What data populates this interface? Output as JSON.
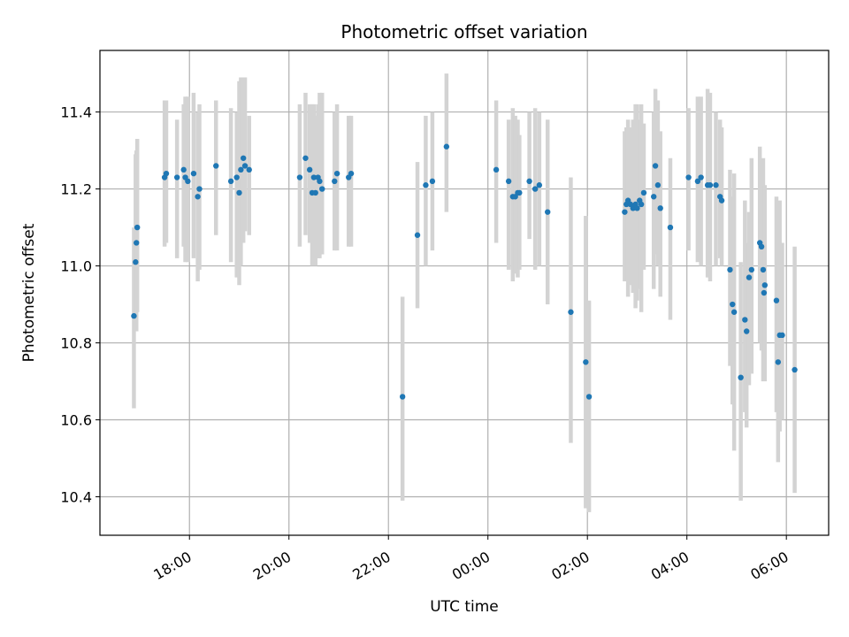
{
  "chart_data": {
    "type": "scatter",
    "title": "Photometric offset variation",
    "xlabel": "UTC time",
    "ylabel": "Photometric offset",
    "x_axis": {
      "kind": "time",
      "start": "17:00",
      "day_break_after": "24:00",
      "range_hours": [
        16.2,
        30.85
      ],
      "ticks": [
        {
          "label": "18:00",
          "hours": 18
        },
        {
          "label": "20:00",
          "hours": 20
        },
        {
          "label": "22:00",
          "hours": 22
        },
        {
          "label": "00:00",
          "hours": 24
        },
        {
          "label": "02:00",
          "hours": 26
        },
        {
          "label": "04:00",
          "hours": 28
        },
        {
          "label": "06:00",
          "hours": 30
        }
      ]
    },
    "ylim": [
      10.3,
      11.56
    ],
    "yticks": [
      "10.4",
      "10.6",
      "10.8",
      "11.0",
      "11.2",
      "11.4"
    ],
    "grid": true,
    "colors": {
      "point": "#1f77b4",
      "errorbar": "#d3d3d3",
      "grid": "#b0b0b0"
    },
    "series": [
      {
        "points": [
          [
            "16:53",
            10.87,
            10.63,
            11.1
          ],
          [
            "16:55",
            11.01,
            10.86,
            11.29
          ],
          [
            "16:56",
            11.06,
            10.83,
            11.3
          ],
          [
            "16:57",
            11.1,
            10.88,
            11.33
          ],
          [
            "17:30",
            11.23,
            11.05,
            11.43
          ],
          [
            "17:32",
            11.24,
            11.06,
            11.43
          ],
          [
            "17:45",
            11.23,
            11.02,
            11.38
          ],
          [
            "17:53",
            11.25,
            11.05,
            11.42
          ],
          [
            "17:55",
            11.23,
            11.01,
            11.44
          ],
          [
            "17:58",
            11.22,
            11.01,
            11.44
          ],
          [
            "18:05",
            11.24,
            11.02,
            11.45
          ],
          [
            "18:10",
            11.18,
            10.96,
            11.4
          ],
          [
            "18:12",
            11.2,
            10.99,
            11.42
          ],
          [
            "18:32",
            11.26,
            11.08,
            11.43
          ],
          [
            "18:50",
            11.22,
            11.01,
            11.41
          ],
          [
            "18:57",
            11.23,
            10.97,
            11.4
          ],
          [
            "19:00",
            11.19,
            10.95,
            11.48
          ],
          [
            "19:02",
            11.25,
            11.0,
            11.49
          ],
          [
            "19:05",
            11.28,
            11.06,
            11.49
          ],
          [
            "19:07",
            11.26,
            11.09,
            11.49
          ],
          [
            "19:12",
            11.25,
            11.08,
            11.39
          ],
          [
            "20:13",
            11.23,
            11.05,
            11.42
          ],
          [
            "20:20",
            11.28,
            11.08,
            11.45
          ],
          [
            "20:25",
            11.25,
            11.06,
            11.42
          ],
          [
            "20:28",
            11.19,
            11.0,
            11.42
          ],
          [
            "20:30",
            11.23,
            11.02,
            11.42
          ],
          [
            "20:32",
            11.19,
            11.0,
            11.39
          ],
          [
            "20:35",
            11.23,
            11.02,
            11.42
          ],
          [
            "20:37",
            11.22,
            11.02,
            11.45
          ],
          [
            "20:40",
            11.2,
            11.03,
            11.45
          ],
          [
            "20:55",
            11.22,
            11.04,
            11.4
          ],
          [
            "20:58",
            11.24,
            11.04,
            11.42
          ],
          [
            "21:12",
            11.23,
            11.05,
            11.39
          ],
          [
            "21:15",
            11.24,
            11.05,
            11.39
          ],
          [
            "22:17",
            10.66,
            10.39,
            10.92
          ],
          [
            "22:35",
            11.08,
            10.89,
            11.27
          ],
          [
            "22:45",
            11.21,
            11.0,
            11.39
          ],
          [
            "22:53",
            11.22,
            11.04,
            11.4
          ],
          [
            "23:10",
            11.31,
            11.14,
            11.5
          ],
          [
            "00:10",
            11.25,
            11.06,
            11.43
          ],
          [
            "00:25",
            11.22,
            10.99,
            11.38
          ],
          [
            "00:30",
            11.18,
            10.96,
            11.41
          ],
          [
            "00:33",
            11.18,
            10.98,
            11.39
          ],
          [
            "00:36",
            11.19,
            10.97,
            11.38
          ],
          [
            "00:38",
            11.19,
            10.99,
            11.34
          ],
          [
            "00:50",
            11.22,
            11.07,
            11.4
          ],
          [
            "00:57",
            11.2,
            10.99,
            11.41
          ],
          [
            "01:02",
            11.21,
            11.0,
            11.4
          ],
          [
            "01:12",
            11.14,
            10.9,
            11.38
          ],
          [
            "01:40",
            10.88,
            10.54,
            11.23
          ],
          [
            "01:58",
            10.75,
            10.37,
            11.13
          ],
          [
            "02:02",
            10.66,
            10.36,
            10.91
          ],
          [
            "02:45",
            11.14,
            10.96,
            11.35
          ],
          [
            "02:47",
            11.16,
            10.99,
            11.36
          ],
          [
            "02:49",
            11.17,
            10.92,
            11.38
          ],
          [
            "02:52",
            11.16,
            10.95,
            11.36
          ],
          [
            "02:55",
            11.15,
            10.93,
            11.38
          ],
          [
            "02:58",
            11.16,
            10.89,
            11.42
          ],
          [
            "03:00",
            11.15,
            10.91,
            11.42
          ],
          [
            "03:03",
            11.17,
            10.94,
            11.38
          ],
          [
            "03:05",
            11.16,
            10.88,
            11.42
          ],
          [
            "03:08",
            11.19,
            10.99,
            11.37
          ],
          [
            "03:20",
            11.18,
            10.94,
            11.4
          ],
          [
            "03:22",
            11.26,
            11.03,
            11.46
          ],
          [
            "03:25",
            11.21,
            11.0,
            11.43
          ],
          [
            "03:28",
            11.15,
            10.92,
            11.35
          ],
          [
            "03:40",
            11.1,
            10.86,
            11.28
          ],
          [
            "04:02",
            11.23,
            11.04,
            11.41
          ],
          [
            "04:13",
            11.22,
            11.01,
            11.44
          ],
          [
            "04:17",
            11.23,
            11.0,
            11.44
          ],
          [
            "04:25",
            11.21,
            10.97,
            11.46
          ],
          [
            "04:28",
            11.21,
            10.96,
            11.45
          ],
          [
            "04:35",
            11.21,
            11.0,
            11.4
          ],
          [
            "04:40",
            11.18,
            11.02,
            11.38
          ],
          [
            "04:42",
            11.17,
            11.0,
            11.36
          ],
          [
            "04:52",
            10.99,
            10.74,
            11.25
          ],
          [
            "04:55",
            10.9,
            10.64,
            11.18
          ],
          [
            "04:57",
            10.88,
            10.52,
            11.24
          ],
          [
            "05:05",
            10.71,
            10.39,
            11.01
          ],
          [
            "05:10",
            10.86,
            10.62,
            11.17
          ],
          [
            "05:12",
            10.83,
            10.58,
            11.06
          ],
          [
            "05:15",
            10.97,
            10.69,
            11.14
          ],
          [
            "05:18",
            10.99,
            10.72,
            11.28
          ],
          [
            "05:28",
            11.06,
            10.8,
            11.31
          ],
          [
            "05:30",
            11.05,
            10.78,
            11.26
          ],
          [
            "05:32",
            10.99,
            10.7,
            11.28
          ],
          [
            "05:33",
            10.93,
            10.71,
            11.18
          ],
          [
            "05:34",
            10.95,
            10.7,
            11.21
          ],
          [
            "05:48",
            10.91,
            10.62,
            11.18
          ],
          [
            "05:50",
            10.75,
            10.49,
            11.01
          ],
          [
            "05:52",
            10.82,
            10.57,
            11.17
          ],
          [
            "05:55",
            10.82,
            10.6,
            11.06
          ],
          [
            "06:10",
            10.73,
            10.41,
            11.05
          ]
        ]
      }
    ]
  }
}
